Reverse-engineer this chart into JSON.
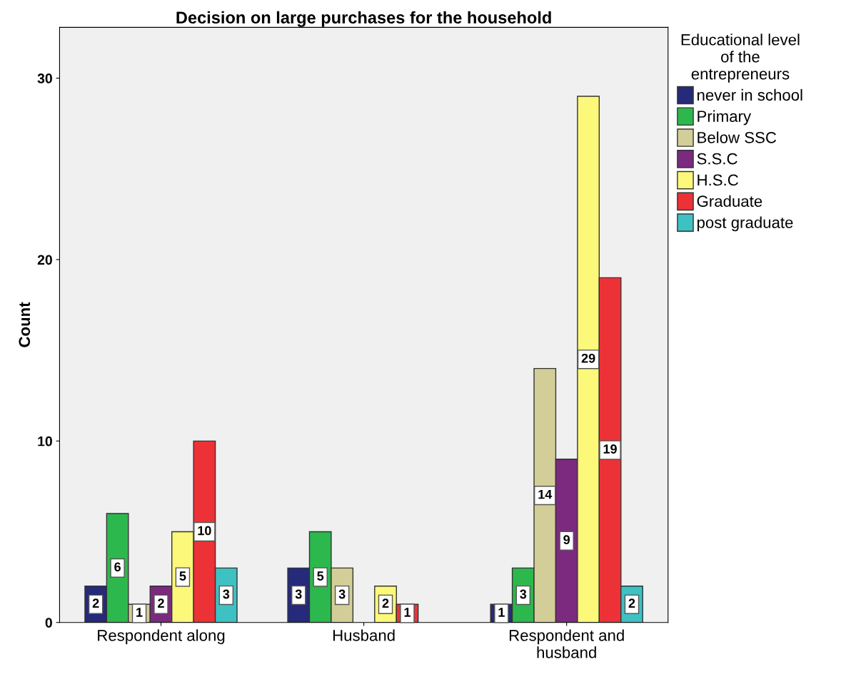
{
  "chart_data": {
    "type": "bar",
    "title": "Decision on large purchases for the household",
    "ylabel": "Count",
    "legend_title": "Educational level\nof the\nentrepreneurs",
    "categories": [
      "Respondent along",
      "Husband",
      "Respondent and\nhusband"
    ],
    "series": [
      {
        "name": "never in school",
        "color": "#262a7a",
        "values": [
          2,
          3,
          1
        ]
      },
      {
        "name": "Primary",
        "color": "#2db84d",
        "values": [
          6,
          5,
          3
        ]
      },
      {
        "name": "Below SSC",
        "color": "#d3ce97",
        "values": [
          1,
          3,
          14
        ]
      },
      {
        "name": "S.S.C",
        "color": "#7b2a7f",
        "values": [
          2,
          null,
          9
        ]
      },
      {
        "name": "H.S.C",
        "color": "#fbf87a",
        "values": [
          5,
          2,
          29
        ]
      },
      {
        "name": "Graduate",
        "color": "#ec3237",
        "values": [
          10,
          1,
          19
        ]
      },
      {
        "name": "post graduate",
        "color": "#3ec1c3",
        "values": [
          3,
          null,
          2
        ]
      }
    ],
    "ylim": [
      0,
      32.8
    ],
    "yticks": [
      0,
      10,
      20,
      30
    ],
    "grid": false,
    "legend": "right",
    "data_labels": true
  }
}
